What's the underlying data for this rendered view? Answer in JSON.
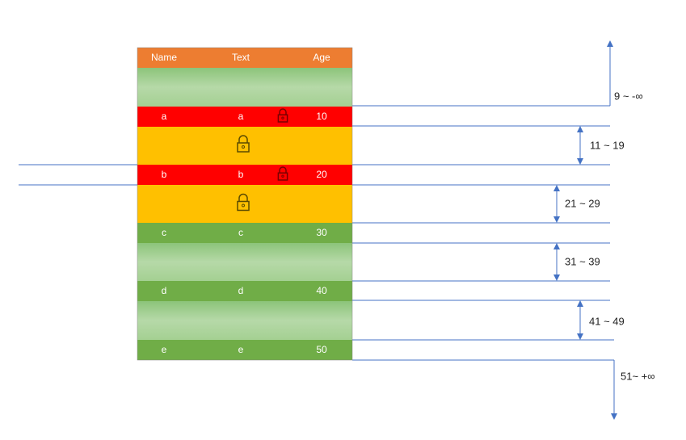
{
  "table": {
    "header": [
      "Name",
      "Text",
      "Age"
    ],
    "rows": [
      [
        "a",
        "a",
        10
      ],
      [
        "b",
        "b",
        20
      ],
      [
        "c",
        "c",
        30
      ],
      [
        "d",
        "d",
        40
      ],
      [
        "e",
        "e",
        50
      ]
    ]
  },
  "ranges": [
    "9 ~ -∞",
    "11 ~ 19",
    "21 ~ 29",
    "31 ~ 39",
    "41 ~ 49",
    "51~ +∞"
  ]
}
